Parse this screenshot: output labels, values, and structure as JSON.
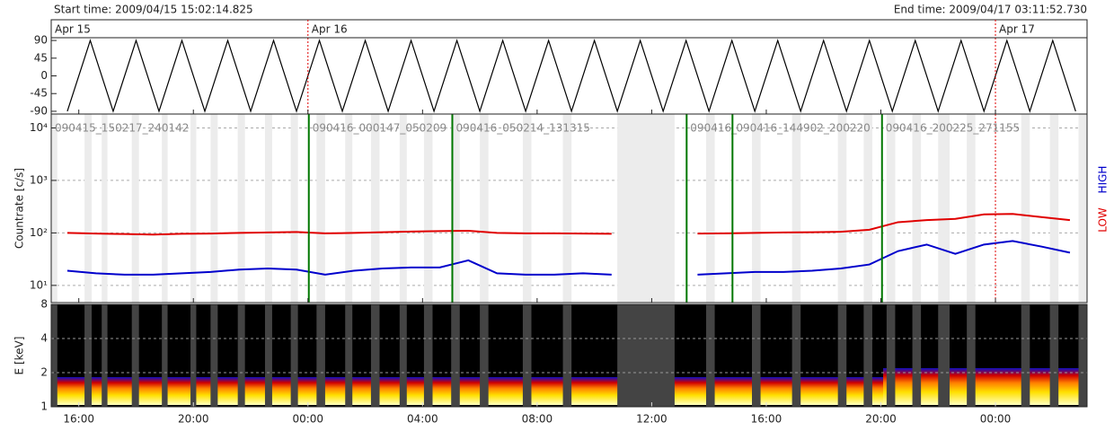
{
  "header": {
    "start_time": "Start time: 2009/04/15 15:02:14.825",
    "end_time": "End time: 2009/04/17 03:11:52.730"
  },
  "chart_data": [
    {
      "type": "line",
      "x": [
        15.6,
        16.4,
        17.2,
        18.0,
        18.8,
        19.6,
        20.4,
        21.2,
        22.0,
        22.8,
        23.6,
        24.4,
        25.2,
        26.0,
        26.8,
        27.6,
        28.4,
        29.2,
        30.0,
        30.8,
        31.6,
        32.4,
        33.2,
        34.0,
        34.8,
        35.6,
        36.4,
        37.2,
        38.0,
        38.8,
        39.6,
        40.4,
        41.2,
        42.0,
        42.8,
        43.6,
        44.4,
        45.2,
        46.0,
        46.8,
        47.6,
        48.4,
        49.2,
        50.0,
        50.8
      ],
      "series": [
        {
          "color": "#000000",
          "values": [
            -90,
            90,
            -90,
            90,
            -90,
            90,
            -90,
            90,
            -90,
            90,
            -90,
            90,
            -90,
            90,
            -90,
            90,
            -90,
            90,
            -90,
            90,
            -90,
            90,
            -90,
            90,
            -90,
            90,
            -90,
            90,
            -90,
            90,
            -90,
            90,
            -90,
            90,
            -90,
            90,
            -90,
            90,
            -90,
            90,
            -90,
            90,
            -90,
            90,
            -90
          ]
        }
      ],
      "ylim": [
        -97,
        97
      ],
      "yticks": [
        90,
        45,
        0,
        -45,
        -90
      ],
      "dates": [
        {
          "value": 15.037,
          "label": "Apr 15"
        },
        {
          "value": 24,
          "label": "Apr 16"
        },
        {
          "value": 48,
          "label": "Apr 17"
        }
      ],
      "date_line_color": "#e00000"
    },
    {
      "type": "line",
      "ylabel": "Countrate [c/s]",
      "log": true,
      "grid": true,
      "x": [
        15.6,
        16.6,
        17.6,
        18.6,
        19.6,
        20.6,
        21.6,
        22.6,
        23.6,
        24.6,
        25.6,
        26.6,
        27.6,
        28.6,
        29.6,
        30.6,
        31.6,
        32.6,
        33.6,
        34.6,
        35.6,
        36.6,
        37.6,
        38.6,
        39.6,
        40.6,
        41.6,
        42.6,
        43.6,
        44.6,
        45.6,
        46.6,
        47.6,
        48.6,
        49.6,
        50.6
      ],
      "series": [
        {
          "name": "LOW",
          "color": "#e00000",
          "values": [
            100,
            97,
            95,
            93,
            96,
            97,
            100,
            102,
            104,
            98,
            100,
            103,
            106,
            108,
            110,
            100,
            98,
            98,
            97,
            96,
            null,
            null,
            97,
            98,
            100,
            102,
            103,
            105,
            115,
            160,
            175,
            185,
            225,
            230,
            200,
            175
          ]
        },
        {
          "name": "HIGH",
          "color": "#0000cc",
          "values": [
            19,
            17,
            16,
            16,
            17,
            18,
            20,
            21,
            20,
            16,
            19,
            21,
            22,
            22,
            30,
            17,
            16,
            16,
            17,
            16,
            null,
            null,
            16,
            17,
            18,
            18,
            19,
            21,
            25,
            45,
            60,
            40,
            60,
            70,
            55,
            42
          ]
        }
      ],
      "ylim": [
        4.7,
        18400
      ],
      "yticks": [
        {
          "value": 10,
          "label": "10¹"
        },
        {
          "value": 100,
          "label": "10²"
        },
        {
          "value": 1000,
          "label": "10³"
        },
        {
          "value": 10000,
          "label": "10⁴"
        }
      ],
      "gaps": [
        [
          15.04,
          15.25
        ],
        [
          16.2,
          16.45
        ],
        [
          16.8,
          17.0
        ],
        [
          17.85,
          18.1
        ],
        [
          18.9,
          19.1
        ],
        [
          19.9,
          20.1
        ],
        [
          20.6,
          20.85
        ],
        [
          21.55,
          21.8
        ],
        [
          22.5,
          22.75
        ],
        [
          23.4,
          23.65
        ],
        [
          24.3,
          24.6
        ],
        [
          25.3,
          25.55
        ],
        [
          26.2,
          26.5
        ],
        [
          27.2,
          27.45
        ],
        [
          28.05,
          28.35
        ],
        [
          29.0,
          29.3
        ],
        [
          30.0,
          30.3
        ],
        [
          31.5,
          31.8
        ],
        [
          32.9,
          33.2
        ],
        [
          34.8,
          36.8
        ],
        [
          37.9,
          38.2
        ],
        [
          39.5,
          39.8
        ],
        [
          40.9,
          41.2
        ],
        [
          42.5,
          42.8
        ],
        [
          43.4,
          43.7
        ],
        [
          44.2,
          44.5
        ],
        [
          45.1,
          45.4
        ],
        [
          46.0,
          46.4
        ],
        [
          47.0,
          47.3
        ],
        [
          48.9,
          49.2
        ],
        [
          49.9,
          50.2
        ],
        [
          50.9,
          51.19
        ]
      ],
      "annotations": [
        {
          "text": "090415_150217_240142",
          "x": 15.037
        },
        {
          "text": "090416_000147_050209",
          "x": 24.03
        },
        {
          "text": "090416_050214_131315",
          "x": 29.04
        },
        {
          "text": "090416_",
          "x": 37.22
        },
        {
          "text": "090416_144902_200220",
          "x": 38.82
        },
        {
          "text": "090416_200225_271155",
          "x": 44.04
        }
      ],
      "boundary_color": "#007700"
    },
    {
      "type": "spectrogram",
      "ylabel": "E [keV]",
      "log": true,
      "grid": true,
      "ylim": [
        1,
        8
      ],
      "yticks": [
        1,
        2,
        4,
        8
      ],
      "xlim": [
        15.037,
        51.198
      ],
      "xticks": [
        {
          "value": 16,
          "label": "16:00"
        },
        {
          "value": 20,
          "label": "20:00"
        },
        {
          "value": 24,
          "label": "00:00"
        },
        {
          "value": 28,
          "label": "04:00"
        },
        {
          "value": 32,
          "label": "08:00"
        },
        {
          "value": 36,
          "label": "12:00"
        },
        {
          "value": 40,
          "label": "16:00"
        },
        {
          "value": 44,
          "label": "20:00"
        },
        {
          "value": 48,
          "label": "00:00"
        }
      ]
    }
  ]
}
